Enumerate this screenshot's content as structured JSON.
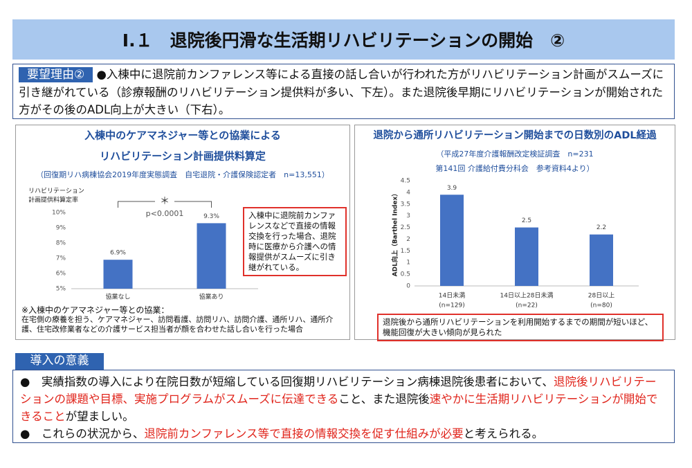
{
  "header": {
    "title": "Ⅰ.１　退院後円滑な生活期リハビリテーションの開始　②"
  },
  "reason": {
    "label": "要望理由②",
    "text": "●入棟中に退院前カンファレンス等による直接の話し合いが行われた方がリハビリテーション計画がスムーズに引き継がれている（診療報酬のリハビリテーション提供料が多い、下左）。また退院後早期にリハビリテーションが開始された方がその後のADL向上が大きい（下右）。"
  },
  "chart_data": [
    {
      "type": "bar",
      "title": [
        "入棟中のケアマネジャー等との協業による",
        "リハビリテーション計画提供料算定"
      ],
      "source": [
        "（回復期リハ病棟協会2019年度実態調査　自宅退院・介護保険認定者　n=13,551）"
      ],
      "ylabel": [
        "リハビリテーション",
        "計画提供料算定率"
      ],
      "categories": [
        "協業なし",
        "協業あり"
      ],
      "values": [
        6.9,
        9.3
      ],
      "value_labels": [
        "6.9%",
        "9.3%"
      ],
      "color": "#4472c4",
      "ylim": [
        5,
        10
      ],
      "yticks": [
        {
          "value": 5,
          "label": "5%"
        },
        {
          "value": 6,
          "label": "6%"
        },
        {
          "value": 7,
          "label": "7%"
        },
        {
          "value": 8,
          "label": "8%"
        },
        {
          "value": 9,
          "label": "9%"
        },
        {
          "value": 10,
          "label": "10%"
        }
      ],
      "grid": false,
      "annotations": [
        "＊",
        "p<0.0001"
      ],
      "note": "入棟中に退院前カンファレンスなどで直接の情報交換を行った場合、退院時に医療から介護への情報提供がスムーズに引き継がれている。",
      "footnote_title": "※入棟中のケアマネジャー等との協業：",
      "footnote": "在宅側の療養を担う、ケアマネジャー、訪問看護、訪問リハ、訪問介護、通所リハ、通所介護、住宅改修業者などの介護サービス担当者が顔を合わせた話し合いを行った場合"
    },
    {
      "type": "bar",
      "title": [
        "退院から通所リハビリテーション開始までの日数別のADL経過"
      ],
      "source": [
        "（平成27年度介護報酬改定検証調査　n=231",
        "第141回 介護給付費分科会　参考資料4より）"
      ],
      "ylabel": [
        "ADL向上（Barthel Index）"
      ],
      "categories": [
        "14日未満",
        "14日以上28日未満",
        "28日以上"
      ],
      "category_notes": [
        "(n=129)",
        "(n=22)",
        "(n=80)"
      ],
      "values": [
        3.9,
        2.5,
        2.2
      ],
      "color": "#4472c4",
      "ylim": [
        0,
        4.5
      ],
      "yticks": [
        0,
        0.5,
        1,
        1.5,
        2,
        2.5,
        3,
        3.5,
        4,
        4.5
      ],
      "grid": false,
      "note": "退院後から通所リハビリテーションを利用開始するまでの期間が短いほど、機能回復が大きい傾向が見られた"
    }
  ],
  "significance": {
    "label": "導入の意義",
    "bullets": [
      [
        {
          "text": "●　実績指数の導入により在院日数が短縮している回復期リハビリテーション病棟退院後患者において、",
          "emphasis": false
        },
        {
          "text": "退院後リハビリテーションの課題や目標、実施プログラムがスムーズに伝達できる",
          "emphasis": true
        },
        {
          "text": "こと、また退院後",
          "emphasis": false
        },
        {
          "text": "速やかに生活期リハビリテーションが開始できること",
          "emphasis": true
        },
        {
          "text": "が望ましい。",
          "emphasis": false
        }
      ],
      [
        {
          "text": "●　これらの状況から、",
          "emphasis": false
        },
        {
          "text": "退院前カンファレンス等で直接の情報交換を促す仕組みが必要",
          "emphasis": true
        },
        {
          "text": "と考えられる。",
          "emphasis": false
        }
      ]
    ]
  }
}
